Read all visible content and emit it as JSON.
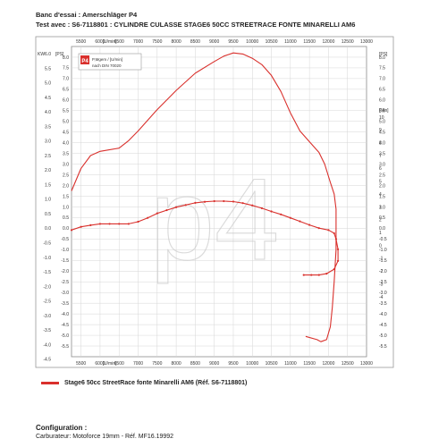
{
  "header": {
    "line1": "Banc d'essai : Amerschläger P4",
    "line2": "Test avec : S6-7118801 : CYLINDRE CULASSE STAGE6 50CC STREETRACE FONTE MINARELLI AM6"
  },
  "inset_legend": {
    "line1": "P,Mgem / [U/min]",
    "line2": "nach DIN 70020",
    "logo_text": "P4"
  },
  "watermark": "p4",
  "legend": {
    "label": "Stage6 50cc StreetRace fonte Minarelli AM6 (Réf. S6-7118801)",
    "color": "#d9302c"
  },
  "configuration": {
    "title": "Configuration :",
    "lines": [
      "Carburateur: Motoforce 19mm - Réf. MF16.19992"
    ]
  },
  "chart_data": {
    "type": "line",
    "x_unit_label": "[U/min]",
    "x_ticks": [
      5500,
      6000,
      6500,
      7000,
      7500,
      8000,
      8500,
      9000,
      9500,
      10000,
      10500,
      11000,
      11500,
      12000,
      12500,
      13000
    ],
    "xlim": [
      5250,
      13000
    ],
    "left_axis": {
      "units": [
        "KW",
        "[PS]"
      ],
      "kw_ticks": [
        -4.5,
        -4.0,
        -3.5,
        -3.0,
        -2.5,
        -2.0,
        -1.5,
        -1.0,
        -0.5,
        0.0,
        0.5,
        1.0,
        1.5,
        2.0,
        2.5,
        3.0,
        3.5,
        4.0,
        4.5,
        5.0,
        5.5,
        6.0
      ],
      "ps_ticks": [
        -6.0,
        -5.5,
        -5.0,
        -4.5,
        -4.0,
        -3.5,
        -3.0,
        -2.5,
        -2.0,
        -1.5,
        -1.0,
        -0.5,
        0.0,
        0.5,
        1.0,
        1.5,
        2.0,
        2.5,
        3.0,
        3.5,
        4.0,
        4.5,
        5.0,
        5.5,
        6.0,
        6.5,
        7.0,
        7.5,
        8.0,
        8.5
      ],
      "ps_range": [
        -6.0,
        8.5
      ]
    },
    "right_axis": {
      "ps_unit": "[PS]",
      "nm_unit": "[Nm]",
      "ps_ticks": [
        -5.5,
        -5.0,
        -4.5,
        -4.0,
        -3.5,
        -3.0,
        -2.5,
        -2.0,
        -1.5,
        -1.0,
        -0.5,
        0.0,
        0.5,
        1.0,
        1.5,
        2.0,
        2.5,
        3.0,
        3.5,
        4.0,
        4.5,
        5.0,
        5.5,
        6.0,
        6.5,
        7.0,
        7.5,
        8.0,
        8.5
      ],
      "nm_ticks": [
        -4,
        -3,
        -2,
        -1,
        0,
        1,
        2,
        3,
        4,
        5,
        6,
        7,
        8,
        9,
        10
      ]
    },
    "series": [
      {
        "axis": "ps",
        "points": [
          [
            5250,
            1.75
          ],
          [
            5500,
            2.8
          ],
          [
            5750,
            3.4
          ],
          [
            6000,
            3.6
          ],
          [
            6500,
            3.75
          ],
          [
            6750,
            4.1
          ],
          [
            7000,
            4.55
          ],
          [
            7500,
            5.55
          ],
          [
            8000,
            6.45
          ],
          [
            8500,
            7.25
          ],
          [
            9000,
            7.8
          ],
          [
            9250,
            8.05
          ],
          [
            9500,
            8.2
          ],
          [
            9750,
            8.15
          ],
          [
            10000,
            7.95
          ],
          [
            10250,
            7.65
          ],
          [
            10500,
            7.15
          ],
          [
            10750,
            6.4
          ],
          [
            11000,
            5.4
          ],
          [
            11250,
            4.55
          ],
          [
            11500,
            4.05
          ],
          [
            11750,
            3.55
          ],
          [
            11900,
            3.0
          ],
          [
            12050,
            2.15
          ],
          [
            12150,
            1.6
          ],
          [
            12200,
            0.9
          ],
          [
            12200,
            -1.0
          ],
          [
            12150,
            -2.5
          ],
          [
            12100,
            -3.7
          ],
          [
            12050,
            -4.6
          ],
          [
            11950,
            -5.2
          ],
          [
            11800,
            -5.3
          ],
          [
            11700,
            -5.2
          ],
          [
            11400,
            -5.05
          ]
        ]
      },
      {
        "axis": "nm",
        "points": [
          [
            5250,
            1.2
          ],
          [
            5500,
            1.45
          ],
          [
            5750,
            1.58
          ],
          [
            6000,
            1.68
          ],
          [
            6250,
            1.68
          ],
          [
            6500,
            1.68
          ],
          [
            6750,
            1.68
          ],
          [
            7000,
            1.85
          ],
          [
            7250,
            2.15
          ],
          [
            7500,
            2.5
          ],
          [
            7750,
            2.75
          ],
          [
            8000,
            2.98
          ],
          [
            8250,
            3.15
          ],
          [
            8500,
            3.32
          ],
          [
            8750,
            3.4
          ],
          [
            9000,
            3.45
          ],
          [
            9250,
            3.45
          ],
          [
            9500,
            3.42
          ],
          [
            9750,
            3.3
          ],
          [
            10000,
            3.12
          ],
          [
            10250,
            2.9
          ],
          [
            10500,
            2.65
          ],
          [
            10750,
            2.42
          ],
          [
            11000,
            2.15
          ],
          [
            11250,
            1.88
          ],
          [
            11500,
            1.6
          ],
          [
            11750,
            1.35
          ],
          [
            12000,
            1.2
          ],
          [
            12150,
            0.95
          ],
          [
            12200,
            0.5
          ],
          [
            12250,
            -0.3
          ],
          [
            12250,
            -1.2
          ],
          [
            12150,
            -1.85
          ],
          [
            11950,
            -2.2
          ],
          [
            11750,
            -2.3
          ],
          [
            11550,
            -2.3
          ],
          [
            11350,
            -2.3
          ]
        ]
      }
    ],
    "grid": true,
    "line_color": "#d9302c"
  }
}
